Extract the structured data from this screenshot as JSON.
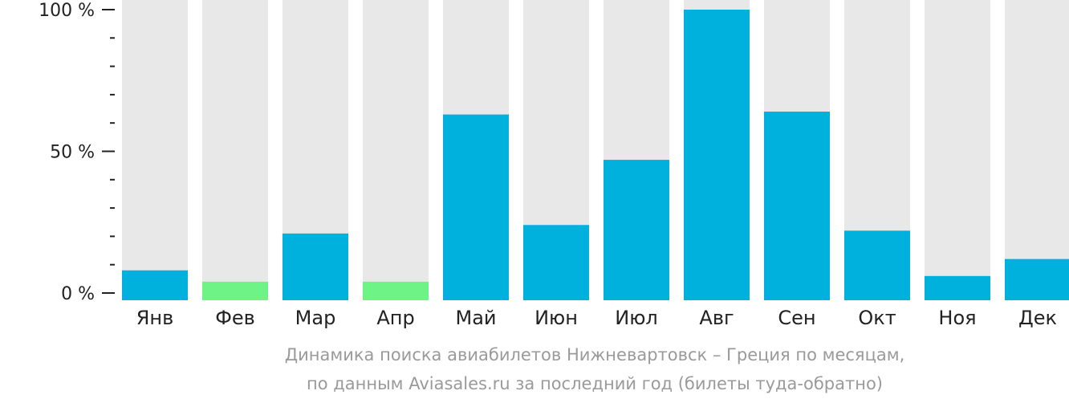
{
  "chart_data": {
    "type": "bar",
    "categories": [
      "Янв",
      "Фев",
      "Мар",
      "Апр",
      "Май",
      "Июн",
      "Июл",
      "Авг",
      "Сен",
      "Окт",
      "Ноя",
      "Дек"
    ],
    "values": [
      8,
      4,
      21,
      4,
      63,
      24,
      47,
      100,
      64,
      22,
      6,
      12
    ],
    "highlight": [
      false,
      true,
      false,
      true,
      false,
      false,
      false,
      false,
      false,
      false,
      false,
      false
    ],
    "ylim": [
      0,
      100
    ],
    "yticks": [
      {
        "value": 0,
        "label": "0 %"
      },
      {
        "value": 50,
        "label": "50 %"
      },
      {
        "value": 100,
        "label": "100 %"
      }
    ],
    "minor_tick_step": 10,
    "colors": {
      "bar": "#00b0dd",
      "highlight": "#6ef387",
      "background_bar": "#e8e8e8",
      "axis": "#222222"
    }
  },
  "caption": {
    "line1": "Динамика поиска авиабилетов Нижневартовск – Греция по месяцам,",
    "line2": "по данным Aviasales.ru за последний год (билеты туда-обратно)"
  }
}
